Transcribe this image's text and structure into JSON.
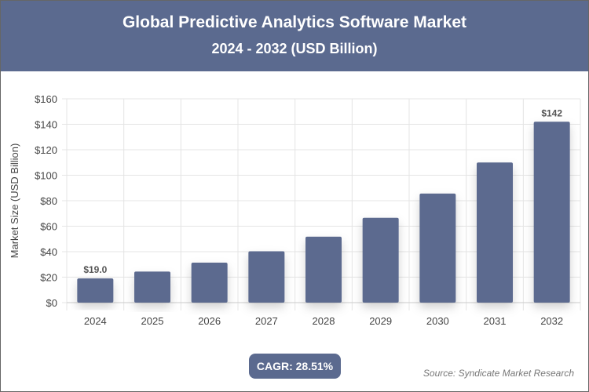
{
  "header": {
    "title": "Global Predictive Analytics Software Market",
    "subtitle": "2024 - 2032 (USD Billion)"
  },
  "chart_data": {
    "type": "bar",
    "categories": [
      "2024",
      "2025",
      "2026",
      "2027",
      "2028",
      "2029",
      "2030",
      "2031",
      "2032"
    ],
    "values": [
      19.0,
      24.4,
      31.4,
      40.3,
      51.8,
      66.6,
      85.6,
      110.0,
      142
    ],
    "data_labels": {
      "0": "$19.0",
      "8": "$142"
    },
    "ylabel": "Market Size (USD Billion)",
    "xlabel": "",
    "ylim": [
      0,
      160
    ],
    "yticks": [
      0,
      20,
      40,
      60,
      80,
      100,
      120,
      140,
      160
    ],
    "ytick_labels": [
      "$0",
      "$20",
      "$40",
      "$60",
      "$80",
      "$100",
      "$120",
      "$140",
      "$160"
    ],
    "grid": true,
    "bar_color": "#5b6a8f"
  },
  "footer": {
    "cagr": "CAGR: 28.51%",
    "source": "Source: Syndicate Market Research"
  }
}
